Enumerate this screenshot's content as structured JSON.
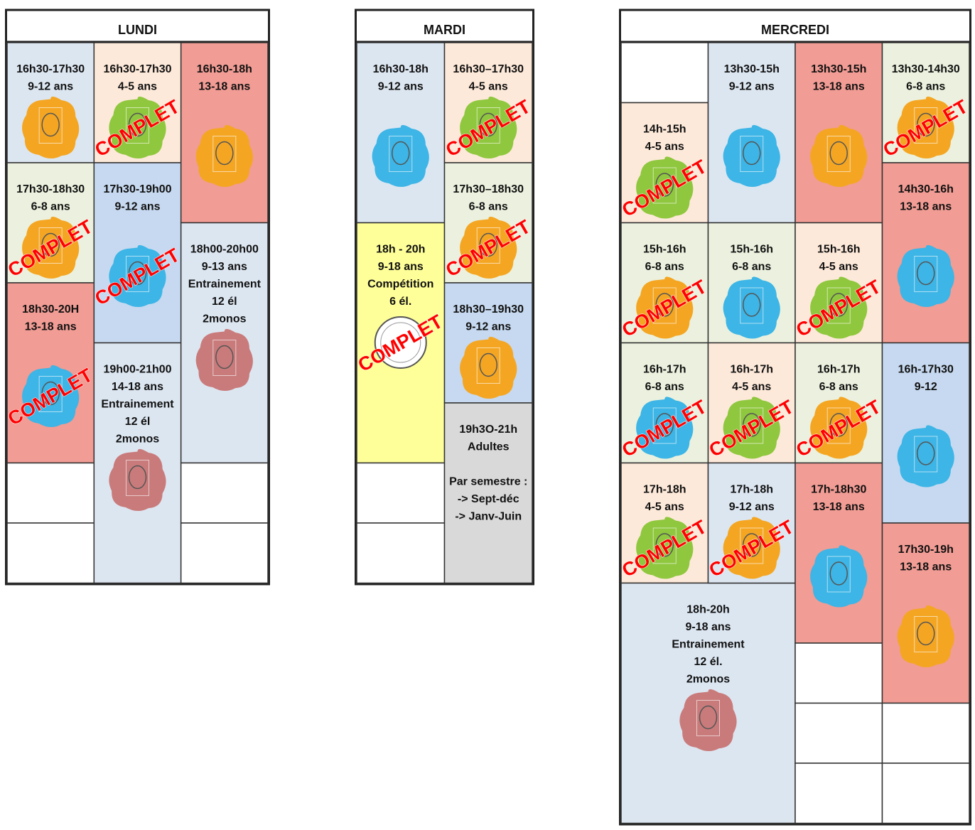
{
  "days": [
    {
      "name": "LUNDI",
      "cells": [
        {
          "lines": [
            "16h30-17h30",
            "9-12 ans"
          ]
        },
        {
          "lines": [
            "17h30-18h30",
            "6-8 ans"
          ],
          "status": "COMPLET"
        },
        {
          "lines": [
            "18h30-20H",
            "13-18 ans"
          ],
          "status": "COMPLET"
        },
        {
          "lines": []
        },
        {
          "lines": []
        },
        {
          "lines": [
            "16h30-17h30",
            "4-5 ans"
          ],
          "status": "COMPLET"
        },
        {
          "lines": [
            "17h30-19h00",
            "9-12 ans"
          ],
          "status": "COMPLET"
        },
        {
          "lines": [
            "19h00-21h00",
            "14-18 ans",
            "Entrainement",
            "12 él",
            "2monos"
          ]
        },
        {
          "lines": [
            "16h30-18h",
            "13-18 ans"
          ]
        },
        {
          "lines": [
            "18h00-20h00",
            "9-13 ans",
            "Entrainement",
            "12 él",
            "2monos"
          ]
        },
        {
          "lines": []
        },
        {
          "lines": []
        }
      ]
    },
    {
      "name": "MARDI",
      "cells": [
        {
          "lines": [
            "16h30-18h",
            "9-12 ans"
          ]
        },
        {
          "lines": [
            "18h - 20h",
            "9-18 ans",
            "Compétition",
            "6 él."
          ],
          "status": "COMPLET"
        },
        {
          "lines": []
        },
        {
          "lines": []
        },
        {
          "lines": [
            "16h30–17h30",
            "4-5 ans"
          ],
          "status": "COMPLET"
        },
        {
          "lines": [
            "17h30–18h30",
            "6-8 ans"
          ],
          "status": "COMPLET"
        },
        {
          "lines": [
            "18h30–19h30",
            "9-12 ans"
          ]
        },
        {
          "lines": [
            "19h3O-21h",
            "Adultes",
            "",
            "Par semestre :",
            "-> Sept-déc",
            "-> Janv-Juin"
          ]
        }
      ]
    },
    {
      "name": "MERCREDI",
      "cells": [
        {
          "lines": []
        },
        {
          "lines": [
            "14h-15h",
            "4-5 ans"
          ],
          "status": "COMPLET"
        },
        {
          "lines": [
            "15h-16h",
            "6-8 ans"
          ],
          "status": "COMPLET"
        },
        {
          "lines": [
            "16h-17h",
            "6-8 ans"
          ],
          "status": "COMPLET"
        },
        {
          "lines": [
            "17h-18h",
            "4-5 ans"
          ],
          "status": "COMPLET"
        },
        {
          "lines": [
            "18h-20h",
            "9-18 ans",
            "Entrainement",
            "12 él.",
            "2monos"
          ]
        },
        {
          "lines": [
            "13h30-15h",
            "9-12 ans"
          ]
        },
        {
          "lines": [
            "15h-16h",
            "6-8 ans"
          ]
        },
        {
          "lines": [
            "16h-17h",
            "4-5 ans"
          ],
          "status": "COMPLET"
        },
        {
          "lines": [
            "17h-18h",
            "9-12 ans"
          ],
          "status": "COMPLET"
        },
        {
          "lines": [
            "13h30-15h",
            "13-18 ans"
          ]
        },
        {
          "lines": [
            "15h-16h",
            "4-5 ans"
          ],
          "status": "COMPLET"
        },
        {
          "lines": [
            "16h-17h",
            "6-8 ans"
          ],
          "status": "COMPLET"
        },
        {
          "lines": [
            "17h-18h30",
            "13-18 ans"
          ]
        },
        {
          "lines": []
        },
        {
          "lines": []
        },
        {
          "lines": []
        },
        {
          "lines": [
            "13h30-14h30",
            "6-8 ans"
          ],
          "status": "COMPLET"
        },
        {
          "lines": [
            "14h30-16h",
            "13-18 ans"
          ]
        },
        {
          "lines": [
            "16h-17h30",
            "9-12"
          ]
        },
        {
          "lines": [
            "17h30-19h",
            "13-18 ans"
          ]
        },
        {
          "lines": []
        },
        {
          "lines": []
        }
      ]
    }
  ]
}
